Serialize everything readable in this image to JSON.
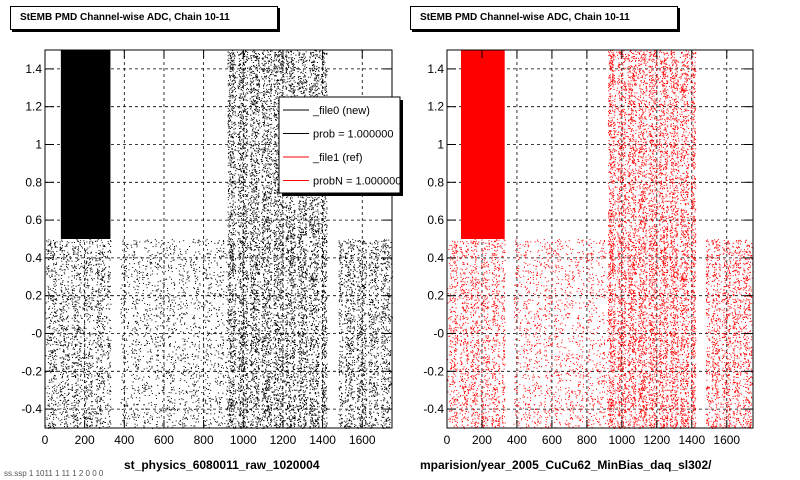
{
  "chart_data": [
    {
      "type": "scatter",
      "title": "StEMB PMD Channel-wise ADC, Chain 10-11",
      "xlim": [
        0,
        1750
      ],
      "ylim": [
        -0.5,
        1.5
      ],
      "x_ticks": [
        "0",
        "200",
        "400",
        "600",
        "800",
        "1000",
        "1200",
        "1400",
        "1600"
      ],
      "y_ticks": [
        "-0.4",
        "-0.2",
        "-0",
        "0.2",
        "0.4",
        "0.6",
        "0.8",
        "1",
        "1.2",
        "1.4"
      ],
      "grid": true,
      "marker_color": "#000000",
      "bottom_label": "st_physics_6080011_raw_1020004",
      "legend": {
        "placement": "top-right",
        "entries": [
          {
            "label": "_file0 (new)",
            "color": "#000000"
          },
          {
            "label": "prob = 1.000000",
            "color": "#000000"
          },
          {
            "label": "_file1 (ref)",
            "color": "#ff0000"
          },
          {
            "label": "probN = 1.000000",
            "color": "#ff0000"
          }
        ]
      }
    },
    {
      "type": "scatter",
      "title": "StEMB PMD Channel-wise ADC, Chain 10-11",
      "xlim": [
        0,
        1750
      ],
      "ylim": [
        -0.5,
        1.5
      ],
      "x_ticks": [
        "0",
        "200",
        "400",
        "600",
        "800",
        "1000",
        "1200",
        "1400",
        "1600"
      ],
      "y_ticks": [
        "-0.4",
        "-0.2",
        "-0",
        "0.2",
        "0.4",
        "0.6",
        "0.8",
        "1",
        "1.2",
        "1.4"
      ],
      "grid": true,
      "marker_color": "#ff0000",
      "bottom_label": "mparision/year_2005_CuCu62_MinBias_daq_sl302/"
    }
  ],
  "density_regions": [
    {
      "x0": 80,
      "x1": 330,
      "y0": 0.5,
      "y1": 1.5,
      "density": 1.0
    },
    {
      "x0": 920,
      "x1": 1420,
      "y0": 0.5,
      "y1": 1.5,
      "density": 0.5
    },
    {
      "x0": 0,
      "x1": 330,
      "y0": -0.5,
      "y1": 0.5,
      "density": 0.35
    },
    {
      "x0": 920,
      "x1": 1420,
      "y0": -0.5,
      "y1": 0.5,
      "density": 0.6
    },
    {
      "x0": 1480,
      "x1": 1750,
      "y0": -0.5,
      "y1": 0.5,
      "density": 0.4
    },
    {
      "x0": 380,
      "x1": 920,
      "y0": -0.5,
      "y1": 0.5,
      "density": 0.18
    }
  ],
  "footer": "ss.ssp   1   1011 1  11 1 2 0 0 0"
}
